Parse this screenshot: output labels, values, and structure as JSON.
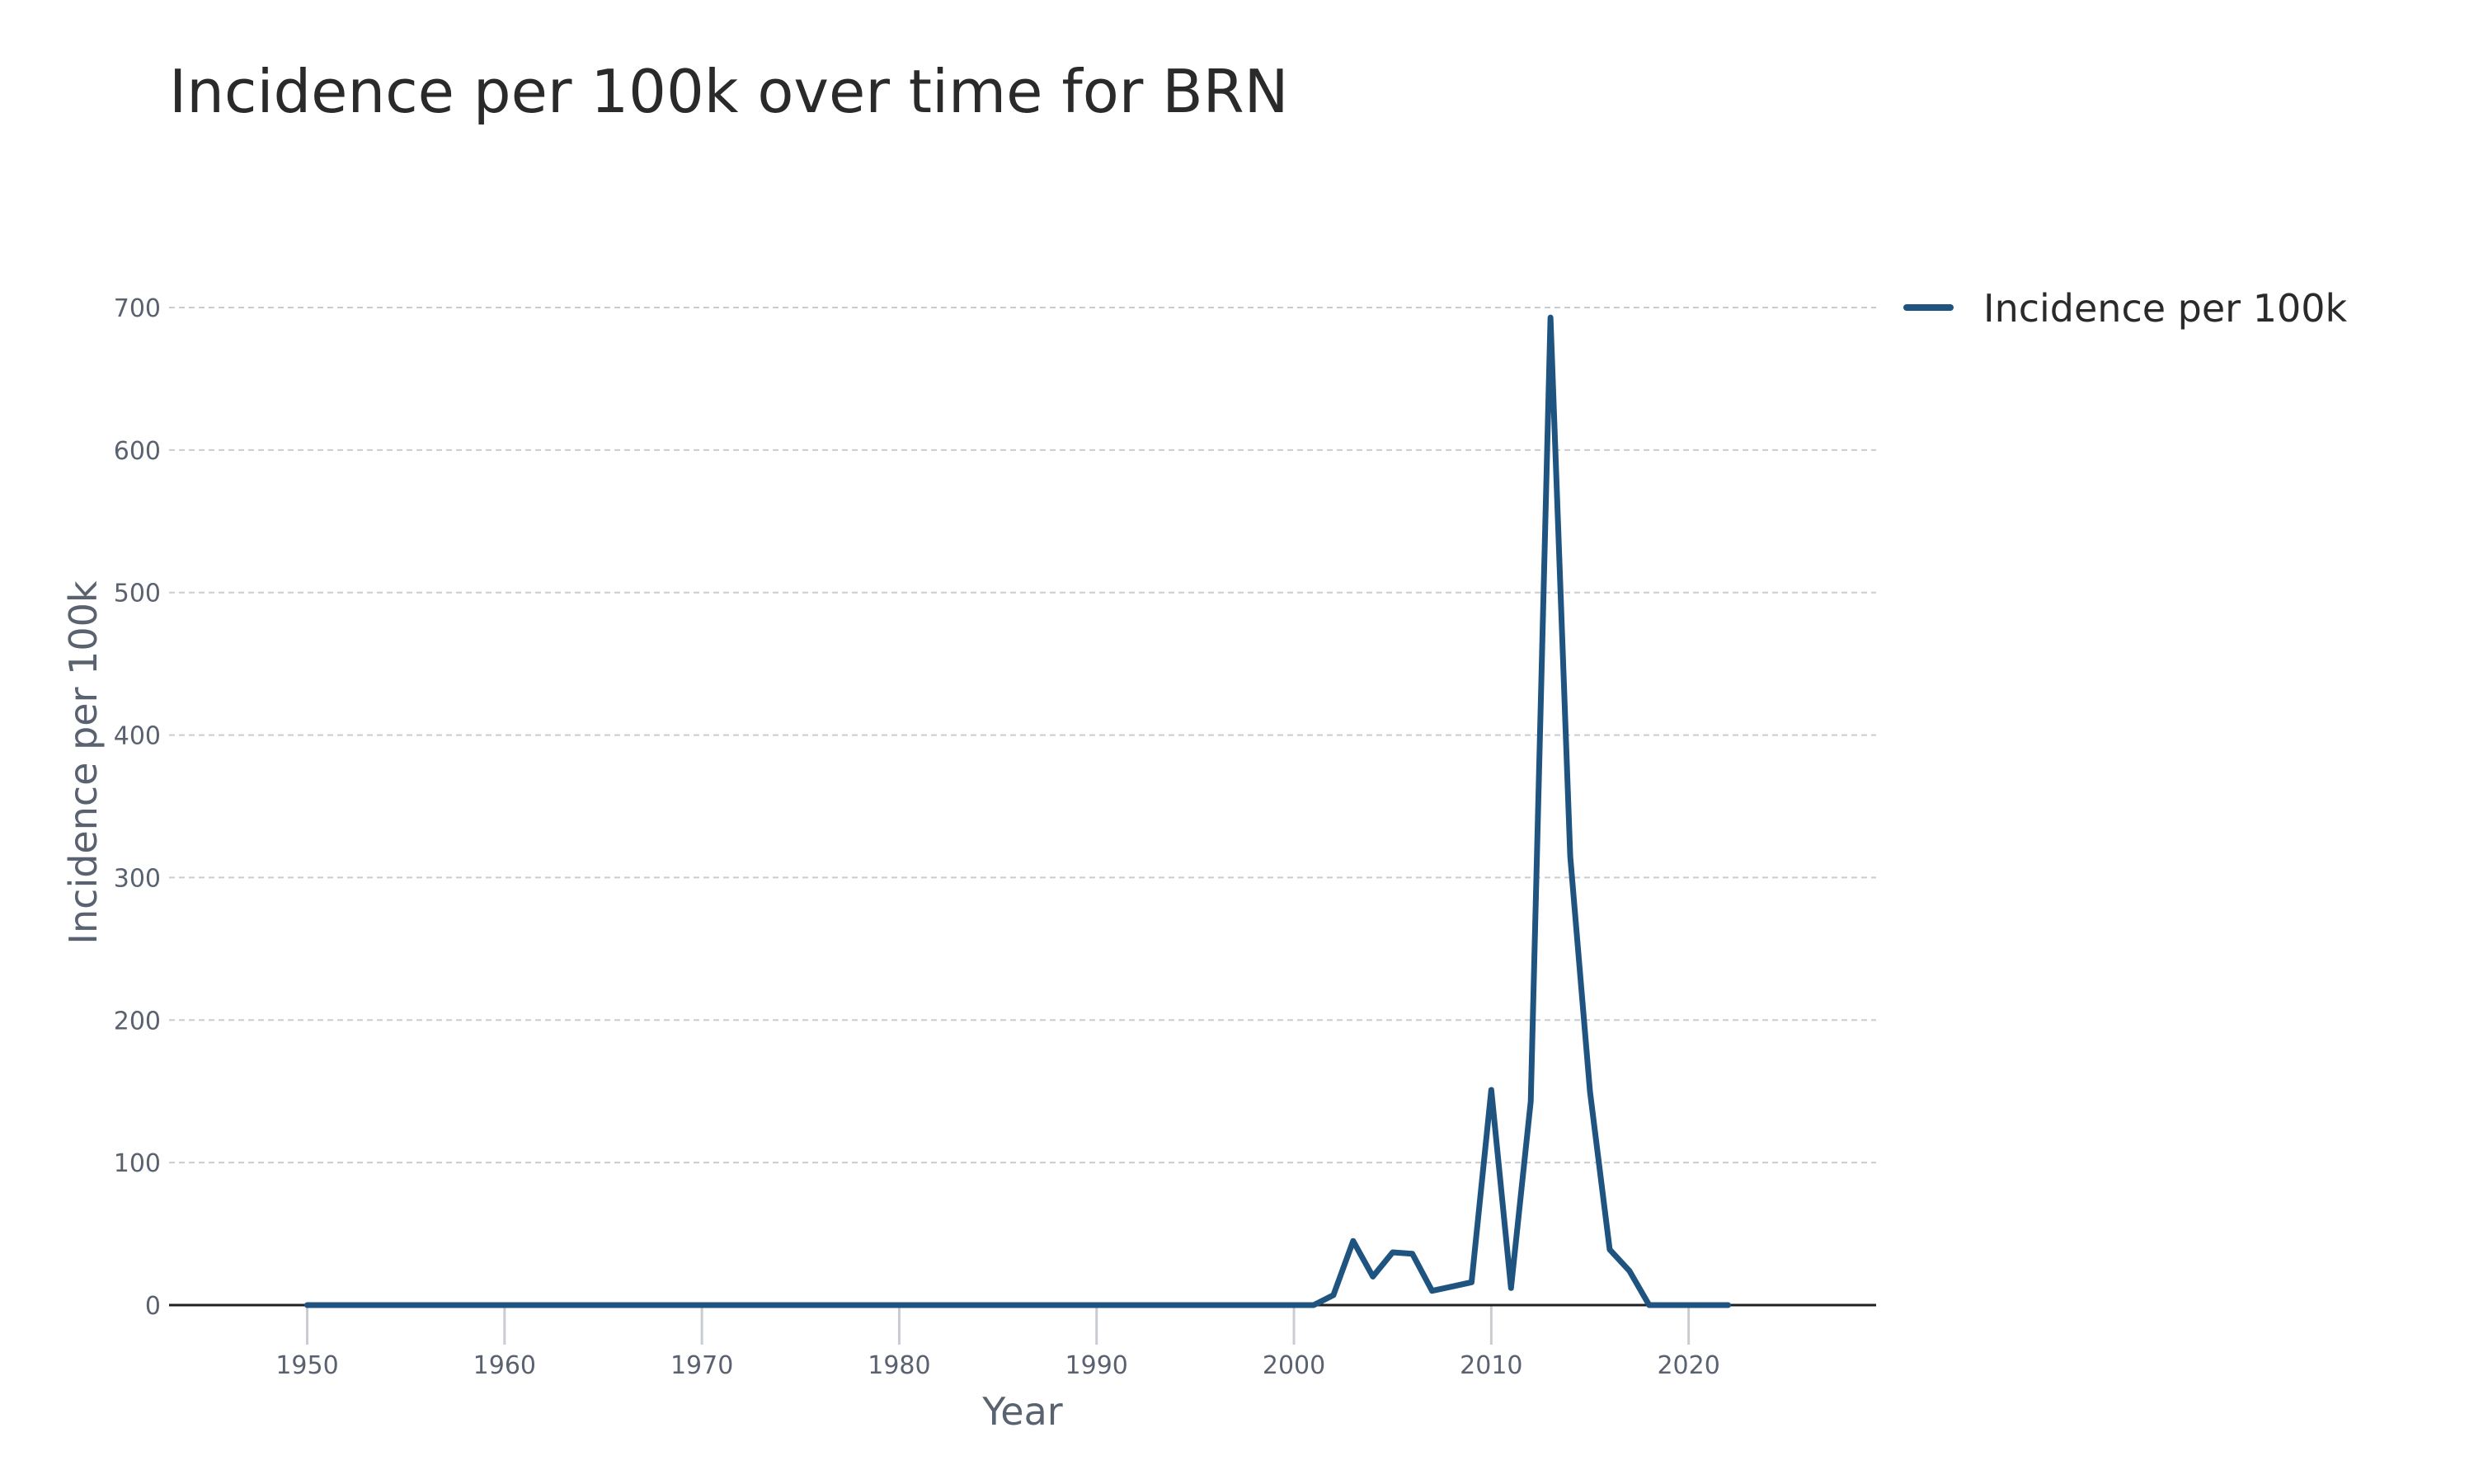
{
  "chart_data": {
    "type": "line",
    "title": "Incidence per 100k over time for BRN",
    "xlabel": "Year",
    "ylabel": "Incidence per 100k",
    "xlim": [
      1943,
      2029.5
    ],
    "ylim": [
      0,
      700
    ],
    "x_ticks": [
      "1950",
      "1960",
      "1970",
      "1980",
      "1990",
      "2000",
      "2010",
      "2020"
    ],
    "y_ticks": [
      "0",
      "100",
      "200",
      "300",
      "400",
      "500",
      "600",
      "700"
    ],
    "grid": "horizontal dashed",
    "legend": {
      "position": "top-right"
    },
    "series": [
      {
        "name": "Incidence per 100k",
        "color": "#1f5480",
        "x": [
          1950,
          1951,
          1952,
          1953,
          1954,
          1955,
          1956,
          1957,
          1958,
          1959,
          1960,
          1961,
          1962,
          1963,
          1964,
          1965,
          1966,
          1967,
          1968,
          1969,
          1970,
          1971,
          1972,
          1973,
          1974,
          1975,
          1976,
          1977,
          1978,
          1979,
          1980,
          1981,
          1982,
          1983,
          1984,
          1985,
          1986,
          1987,
          1988,
          1989,
          1990,
          1991,
          1992,
          1993,
          1994,
          1995,
          1996,
          1997,
          1998,
          1999,
          2000,
          2001,
          2002,
          2003,
          2004,
          2005,
          2006,
          2007,
          2008,
          2009,
          2010,
          2011,
          2012,
          2013,
          2014,
          2015,
          2016,
          2017,
          2018,
          2019,
          2020,
          2021,
          2022
        ],
        "values": [
          0,
          0,
          0,
          0,
          0,
          0,
          0,
          0,
          0,
          0,
          0,
          0,
          0,
          0,
          0,
          0,
          0,
          0,
          0,
          0,
          0,
          0,
          0,
          0,
          0,
          0,
          0,
          0,
          0,
          0,
          0,
          0,
          0,
          0,
          0,
          0,
          0,
          0,
          0,
          0,
          0,
          0,
          0,
          0,
          0,
          0,
          0,
          0,
          0,
          0,
          0,
          0,
          7,
          45,
          20,
          37,
          36,
          10,
          13,
          16,
          151,
          12,
          143,
          693,
          315,
          150,
          39,
          24,
          0,
          0,
          0,
          0,
          0
        ]
      }
    ]
  }
}
